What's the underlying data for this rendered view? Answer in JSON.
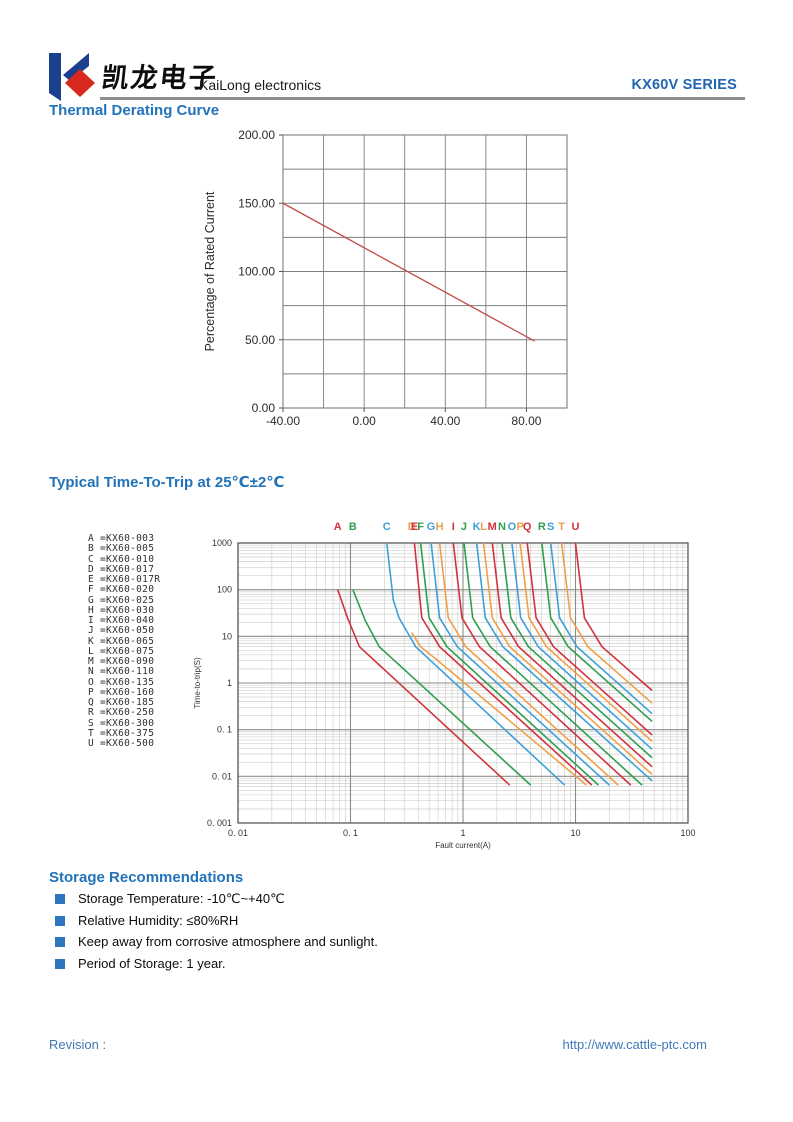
{
  "header": {
    "logo_cn": "凯龙电子",
    "logo_en": "KaiLong electronics",
    "series": "KX60V SERIES"
  },
  "sections": {
    "thermal_title": "Thermal Derating Curve",
    "trip_title": "Typical Time-To-Trip at 25℃±2℃",
    "storage_title": "Storage Recommendations"
  },
  "storage_items": [
    "Storage Temperature: -10℃~+40℃",
    "Relative Humidity: ≤80%RH",
    "Keep away from corrosive atmosphere and sunlight.",
    "Period of Storage: 1 year."
  ],
  "footer": {
    "revision": "Revision :",
    "url": "http://www.cattle-ptc.com"
  },
  "colors": {
    "heading_blue": "#2273b9",
    "series_blue": "#2166b0",
    "bullet_blue": "#2e77be",
    "derating_line_red": "#bf4c48",
    "grid_gray": "#7f7f7f",
    "curve_red": "#d2323e",
    "curve_green": "#2f9e50",
    "curve_blue": "#3fa0d8",
    "curve_orange": "#eea049"
  },
  "chart_data": [
    {
      "type": "line",
      "title": "Thermal Derating Curve",
      "xlabel": "",
      "ylabel": "Percentage of Rated Current",
      "xlim": [
        -40,
        100
      ],
      "ylim": [
        0,
        200
      ],
      "x_grid_step": 20,
      "y_grid_step": 25,
      "x_major_ticks": [
        -40,
        0,
        40,
        80
      ],
      "x_tick_labels": [
        "-40.00",
        "0.00",
        "40.00",
        "80.00"
      ],
      "y_major_ticks": [
        0,
        50,
        100,
        150,
        200
      ],
      "y_tick_labels": [
        "0.00",
        "50.00",
        "100.00",
        "150.00",
        "200.00"
      ],
      "grid": true,
      "line_color": "#bf4c48",
      "points": [
        [
          -40,
          150
        ],
        [
          84,
          49
        ]
      ]
    },
    {
      "type": "line-log",
      "title": "Typical Time-To-Trip at 25℃±2℃",
      "xlabel": "Fault current(A)",
      "ylabel": "Time-to-trip(S)",
      "xlim": [
        0.01,
        100
      ],
      "ylim": [
        0.001,
        1000
      ],
      "x_tick_values": [
        0.01,
        0.1,
        1,
        10,
        100
      ],
      "x_tick_labels": [
        "0. 01",
        "0. 1",
        "1",
        "10",
        "100"
      ],
      "y_tick_values": [
        1000,
        100,
        10,
        1,
        0.1,
        0.01,
        0.001
      ],
      "y_tick_labels": [
        "1000",
        "100",
        "10",
        "1",
        "0. 1",
        "0. 01",
        "0. 001"
      ],
      "grid": true,
      "legend_position": "left",
      "series": [
        {
          "letter": "A",
          "model": "KX60-003",
          "color": "#d2323e",
          "points": [
            [
              0.077,
              100
            ],
            [
              0.094,
              25
            ],
            [
              0.12,
              6
            ],
            [
              2.6,
              0.0065
            ]
          ]
        },
        {
          "letter": "B",
          "model": "KX60-005",
          "color": "#2f9e50",
          "points": [
            [
              0.105,
              100
            ],
            [
              0.135,
              22
            ],
            [
              0.18,
              6
            ],
            [
              4.0,
              0.0065
            ]
          ]
        },
        {
          "letter": "C",
          "model": "KX60-010",
          "color": "#3fa0d8",
          "points": [
            [
              0.21,
              1000
            ],
            [
              0.24,
              60
            ],
            [
              0.27,
              25
            ],
            [
              0.38,
              6
            ],
            [
              8.0,
              0.0065
            ]
          ]
        },
        {
          "letter": "D",
          "model": "KX60-017",
          "color": "#eea049",
          "points": [
            [
              0.35,
              12
            ],
            [
              0.42,
              6
            ],
            [
              0.6,
              3
            ],
            [
              12.5,
              0.0065
            ]
          ]
        },
        {
          "letter": "E",
          "model": "KX60-017R",
          "color": "#d2323e",
          "points": [
            [
              0.37,
              1000
            ],
            [
              0.43,
              25
            ],
            [
              0.62,
              6
            ],
            [
              14,
              0.0065
            ]
          ]
        },
        {
          "letter": "F",
          "model": "KX60-020",
          "color": "#2f9e50",
          "points": [
            [
              0.42,
              1000
            ],
            [
              0.5,
              25
            ],
            [
              0.72,
              6
            ],
            [
              16,
              0.0065
            ]
          ]
        },
        {
          "letter": "G",
          "model": "KX60-025",
          "color": "#3fa0d8",
          "points": [
            [
              0.52,
              1000
            ],
            [
              0.62,
              25
            ],
            [
              0.89,
              6
            ],
            [
              20,
              0.0065
            ]
          ]
        },
        {
          "letter": "H",
          "model": "KX60-030",
          "color": "#eea049",
          "points": [
            [
              0.62,
              1000
            ],
            [
              0.74,
              25
            ],
            [
              1.06,
              6
            ],
            [
              24,
              0.0065
            ]
          ]
        },
        {
          "letter": "I",
          "model": "KX60-040",
          "color": "#d2323e",
          "points": [
            [
              0.82,
              1000
            ],
            [
              0.98,
              25
            ],
            [
              1.4,
              6
            ],
            [
              31,
              0.0065
            ]
          ]
        },
        {
          "letter": "J",
          "model": "KX60-050",
          "color": "#2f9e50",
          "points": [
            [
              1.02,
              1000
            ],
            [
              1.22,
              25
            ],
            [
              1.75,
              6
            ],
            [
              39,
              0.0065
            ]
          ]
        },
        {
          "letter": "K",
          "model": "KX60-065",
          "color": "#3fa0d8",
          "points": [
            [
              1.32,
              1000
            ],
            [
              1.58,
              25
            ],
            [
              2.26,
              6
            ],
            [
              48,
              0.008
            ]
          ]
        },
        {
          "letter": "L",
          "model": "KX60-075",
          "color": "#eea049",
          "points": [
            [
              1.52,
              1000
            ],
            [
              1.82,
              25
            ],
            [
              2.6,
              6
            ],
            [
              48,
              0.011
            ]
          ]
        },
        {
          "letter": "M",
          "model": "KX60-090",
          "color": "#d2323e",
          "points": [
            [
              1.82,
              1000
            ],
            [
              2.18,
              25
            ],
            [
              3.12,
              6
            ],
            [
              48,
              0.016
            ]
          ]
        },
        {
          "letter": "N",
          "model": "KX60-110",
          "color": "#2f9e50",
          "points": [
            [
              2.22,
              1000
            ],
            [
              2.66,
              25
            ],
            [
              3.81,
              6
            ],
            [
              48,
              0.025
            ]
          ]
        },
        {
          "letter": "O",
          "model": "KX60-135",
          "color": "#3fa0d8",
          "points": [
            [
              2.72,
              1000
            ],
            [
              3.26,
              25
            ],
            [
              4.66,
              6
            ],
            [
              48,
              0.038
            ]
          ]
        },
        {
          "letter": "P",
          "model": "KX60-160",
          "color": "#eea049",
          "points": [
            [
              3.22,
              1000
            ],
            [
              3.86,
              25
            ],
            [
              5.52,
              6
            ],
            [
              48,
              0.056
            ]
          ]
        },
        {
          "letter": "Q",
          "model": "KX60-185",
          "color": "#d2323e",
          "points": [
            [
              3.72,
              1000
            ],
            [
              4.46,
              25
            ],
            [
              6.38,
              6
            ],
            [
              48,
              0.077
            ]
          ]
        },
        {
          "letter": "R",
          "model": "KX60-250",
          "color": "#2f9e50",
          "points": [
            [
              5.02,
              1000
            ],
            [
              6.02,
              25
            ],
            [
              8.61,
              6
            ],
            [
              48,
              0.15
            ]
          ]
        },
        {
          "letter": "S",
          "model": "KX60-300",
          "color": "#3fa0d8",
          "points": [
            [
              6.02,
              1000
            ],
            [
              7.22,
              25
            ],
            [
              10.3,
              6
            ],
            [
              48,
              0.22
            ]
          ]
        },
        {
          "letter": "T",
          "model": "KX60-375",
          "color": "#eea049",
          "points": [
            [
              7.52,
              1000
            ],
            [
              9.02,
              25
            ],
            [
              12.9,
              6
            ],
            [
              48,
              0.37
            ]
          ]
        },
        {
          "letter": "U",
          "model": "KX60-500",
          "color": "#d2323e",
          "points": [
            [
              10.0,
              1000
            ],
            [
              12.0,
              25
            ],
            [
              17.2,
              6
            ],
            [
              48,
              0.69
            ]
          ]
        }
      ]
    }
  ]
}
